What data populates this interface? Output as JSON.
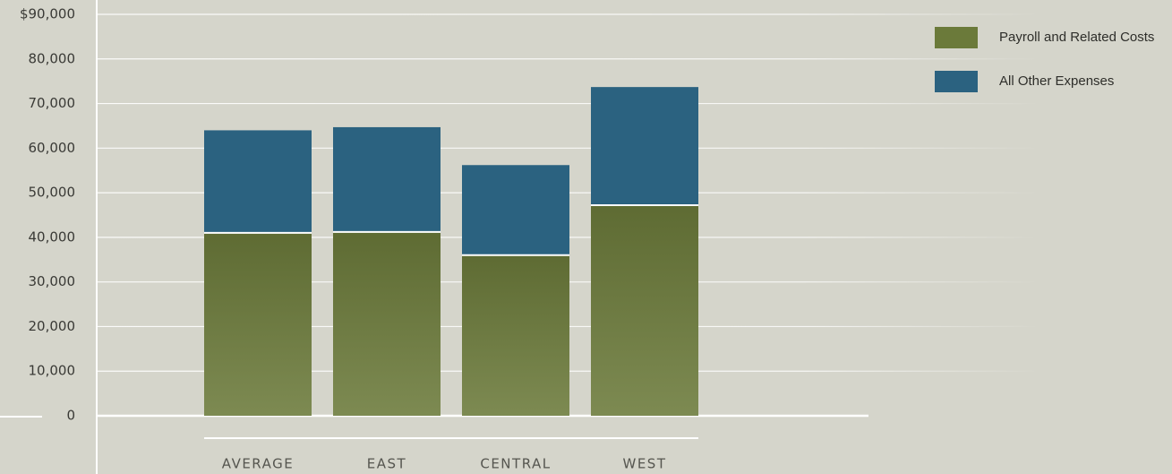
{
  "chart_data": {
    "type": "bar",
    "stacked": true,
    "categories": [
      "AVERAGE",
      "EAST",
      "CENTRAL",
      "WEST"
    ],
    "series": [
      {
        "name": "Payroll and Related Costs",
        "color": "#6b7a3a",
        "values": [
          41000,
          41200,
          36000,
          47200
        ]
      },
      {
        "name": "All Other Expenses",
        "color": "#2b6280",
        "values": [
          23000,
          23500,
          20200,
          26500
        ]
      }
    ],
    "ylim": [
      0,
      90000
    ],
    "yticks": [
      0,
      {
        "value": 10000,
        "label": "10,000"
      },
      {
        "value": 20000,
        "label": "20,000"
      },
      {
        "value": 30000,
        "label": "30,000"
      },
      {
        "value": 40000,
        "label": "40,000"
      },
      {
        "value": 50000,
        "label": "50,000"
      },
      {
        "value": 60000,
        "label": "60,000"
      },
      {
        "value": 70000,
        "label": "70,000"
      },
      {
        "value": 80000,
        "label": "80,000"
      },
      {
        "value": 90000,
        "label": "$90,000"
      }
    ],
    "grid": true,
    "legend": "top-right"
  }
}
